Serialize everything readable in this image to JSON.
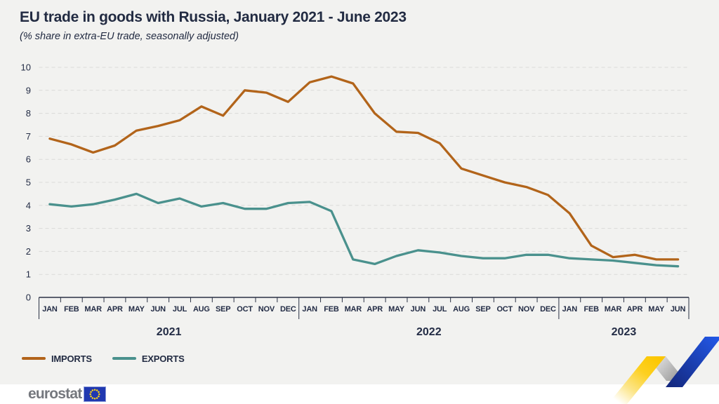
{
  "header": {
    "title": "EU trade in goods with Russia, January 2021 - June 2023",
    "subtitle": "(% share in extra-EU trade, seasonally adjusted)"
  },
  "legend": {
    "items": [
      {
        "label": "IMPORTS",
        "color": "#b2641a"
      },
      {
        "label": "EXPORTS",
        "color": "#4a918d"
      }
    ]
  },
  "footer": {
    "logo_text": "eurostat"
  },
  "colors": {
    "background": "#f2f2f0",
    "footer_background": "#ffffff",
    "text": "#222b42",
    "gridline": "#d9d9d7",
    "axis": "#2a3144",
    "imports": "#b2641a",
    "exports": "#4a918d",
    "logo_gray": "#75787e",
    "flag_blue": "#2038b0",
    "flag_star_yellow": "#ffd617",
    "deco_yellow": "#fdc800",
    "deco_gray": "#9a9a9a",
    "deco_blue": "#2257e5"
  },
  "chart_data": {
    "type": "line",
    "title": "EU trade in goods with Russia, January 2021 - June 2023",
    "subtitle": "(% share in extra-EU trade, seasonally adjusted)",
    "xlabel": "",
    "ylabel": "% share in extra-EU trade",
    "ylim": [
      0,
      10
    ],
    "yticks": [
      0,
      1,
      2,
      3,
      4,
      5,
      6,
      7,
      8,
      9,
      10
    ],
    "grid": "horizontal-dashed",
    "legend_position": "bottom-left",
    "x_labels": [
      "JAN",
      "FEB",
      "MAR",
      "APR",
      "MAY",
      "JUN",
      "JUL",
      "AUG",
      "SEP",
      "OCT",
      "NOV",
      "DEC",
      "JAN",
      "FEB",
      "MAR",
      "APR",
      "MAY",
      "JUN",
      "JUL",
      "AUG",
      "SEP",
      "OCT",
      "NOV",
      "DEC",
      "JAN",
      "FEB",
      "MAR",
      "APR",
      "MAY",
      "JUN"
    ],
    "year_groups": [
      {
        "label": "2021",
        "months": 12
      },
      {
        "label": "2022",
        "months": 12
      },
      {
        "label": "2023",
        "months": 6
      }
    ],
    "series": [
      {
        "name": "IMPORTS",
        "color": "#b2641a",
        "values": [
          6.9,
          6.65,
          6.3,
          6.6,
          7.25,
          7.45,
          7.7,
          8.3,
          7.9,
          9.0,
          8.9,
          8.5,
          9.35,
          9.6,
          9.3,
          8.0,
          7.2,
          7.15,
          6.7,
          5.6,
          5.3,
          5.0,
          4.8,
          4.45,
          3.65,
          2.25,
          1.75,
          1.85,
          1.65,
          1.65
        ]
      },
      {
        "name": "EXPORTS",
        "color": "#4a918d",
        "values": [
          4.05,
          3.95,
          4.05,
          4.25,
          4.5,
          4.1,
          4.3,
          3.95,
          4.1,
          3.85,
          3.85,
          4.1,
          4.15,
          3.75,
          1.65,
          1.45,
          1.8,
          2.05,
          1.95,
          1.8,
          1.7,
          1.7,
          1.85,
          1.85,
          1.7,
          1.65,
          1.6,
          1.5,
          1.4,
          1.35
        ]
      }
    ]
  }
}
